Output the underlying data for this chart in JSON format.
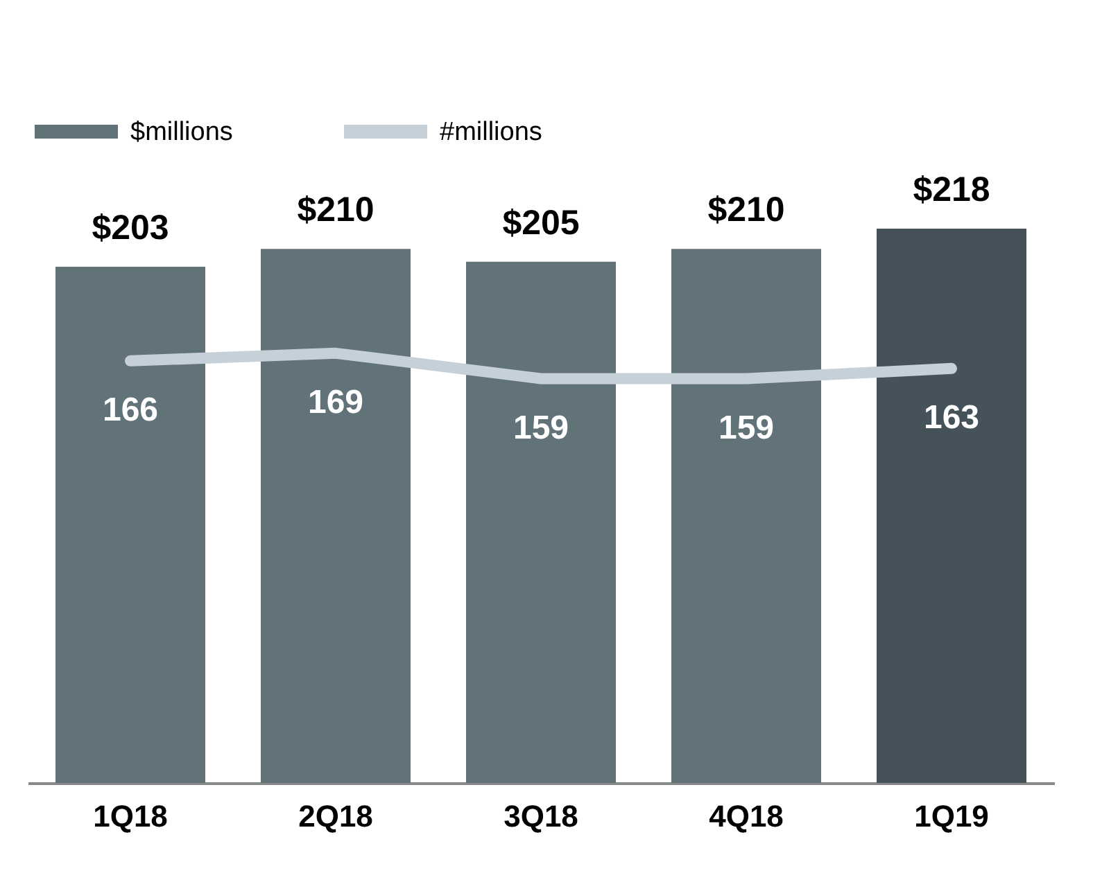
{
  "chart_data": {
    "type": "bar",
    "categories": [
      "1Q18",
      "2Q18",
      "3Q18",
      "4Q18",
      "1Q19"
    ],
    "grid": false,
    "tick_labels": "x",
    "legend": "top",
    "series": [
      {
        "name": "$millions",
        "type": "bar",
        "color": "#627279",
        "colors": [
          "#627279",
          "#627279",
          "#627279",
          "#627279",
          "#465259"
        ],
        "values": [
          203,
          210,
          205,
          210,
          218
        ],
        "value_labels": [
          "$203",
          "$210",
          "$205",
          "$210",
          "$218"
        ]
      },
      {
        "name": "#millions",
        "type": "line",
        "color": "#c5d0d8",
        "values": [
          166,
          169,
          159,
          159,
          163
        ],
        "value_labels": [
          "166",
          "169",
          "159",
          "159",
          "163"
        ]
      }
    ]
  }
}
